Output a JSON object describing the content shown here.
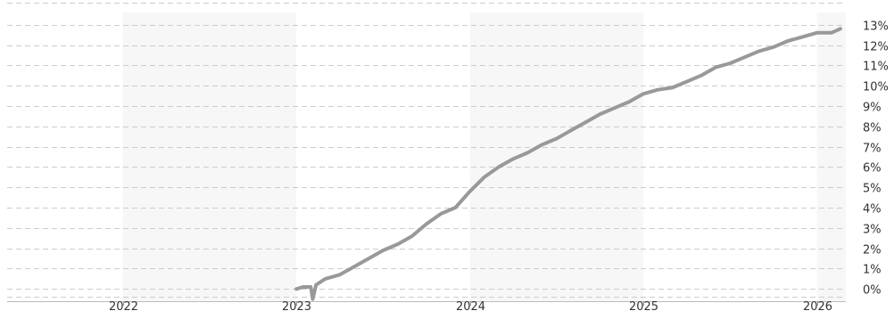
{
  "chart_data": {
    "type": "line",
    "title": "",
    "xlabel": "",
    "ylabel": "",
    "x_tick_labels": [
      "2022",
      "2023",
      "2024",
      "2025",
      "2026"
    ],
    "y_tick_labels": [
      "0%",
      "1%",
      "2%",
      "3%",
      "4%",
      "5%",
      "6%",
      "7%",
      "8%",
      "9%",
      "10%",
      "11%",
      "12%",
      "13%"
    ],
    "ylim": [
      -0.6,
      13.6
    ],
    "xlim": [
      "2021-05-01",
      "2026-03-01"
    ],
    "grid": true,
    "legend": "none",
    "colors": {
      "line": "#999999",
      "band": "#f7f7f7",
      "grid": "#cccccc",
      "text": "#333333"
    },
    "series": [
      {
        "values": [
          {
            "x": "2023-01-01",
            "y": 0.0
          },
          {
            "x": "2023-01-15",
            "y": 0.1
          },
          {
            "x": "2023-02-01",
            "y": 0.1
          },
          {
            "x": "2023-02-05",
            "y": -0.5
          },
          {
            "x": "2023-02-12",
            "y": 0.2
          },
          {
            "x": "2023-03-01",
            "y": 0.5
          },
          {
            "x": "2023-04-01",
            "y": 0.7
          },
          {
            "x": "2023-05-01",
            "y": 1.1
          },
          {
            "x": "2023-06-01",
            "y": 1.5
          },
          {
            "x": "2023-07-01",
            "y": 1.9
          },
          {
            "x": "2023-08-01",
            "y": 2.2
          },
          {
            "x": "2023-09-01",
            "y": 2.6
          },
          {
            "x": "2023-10-01",
            "y": 3.2
          },
          {
            "x": "2023-11-01",
            "y": 3.7
          },
          {
            "x": "2023-12-01",
            "y": 4.0
          },
          {
            "x": "2024-01-01",
            "y": 4.8
          },
          {
            "x": "2024-02-01",
            "y": 5.5
          },
          {
            "x": "2024-03-01",
            "y": 6.0
          },
          {
            "x": "2024-04-01",
            "y": 6.4
          },
          {
            "x": "2024-05-01",
            "y": 6.7
          },
          {
            "x": "2024-06-01",
            "y": 7.1
          },
          {
            "x": "2024-07-01",
            "y": 7.4
          },
          {
            "x": "2024-08-01",
            "y": 7.8
          },
          {
            "x": "2024-09-01",
            "y": 8.2
          },
          {
            "x": "2024-10-01",
            "y": 8.6
          },
          {
            "x": "2024-11-01",
            "y": 8.9
          },
          {
            "x": "2024-12-01",
            "y": 9.2
          },
          {
            "x": "2025-01-01",
            "y": 9.6
          },
          {
            "x": "2025-02-01",
            "y": 9.8
          },
          {
            "x": "2025-03-01",
            "y": 9.9
          },
          {
            "x": "2025-04-01",
            "y": 10.2
          },
          {
            "x": "2025-05-01",
            "y": 10.5
          },
          {
            "x": "2025-06-01",
            "y": 10.9
          },
          {
            "x": "2025-07-01",
            "y": 11.1
          },
          {
            "x": "2025-08-01",
            "y": 11.4
          },
          {
            "x": "2025-09-01",
            "y": 11.7
          },
          {
            "x": "2025-10-01",
            "y": 11.9
          },
          {
            "x": "2025-11-01",
            "y": 12.2
          },
          {
            "x": "2025-12-01",
            "y": 12.4
          },
          {
            "x": "2026-01-01",
            "y": 12.6
          },
          {
            "x": "2026-02-01",
            "y": 12.6
          },
          {
            "x": "2026-02-20",
            "y": 12.8
          }
        ]
      }
    ]
  }
}
